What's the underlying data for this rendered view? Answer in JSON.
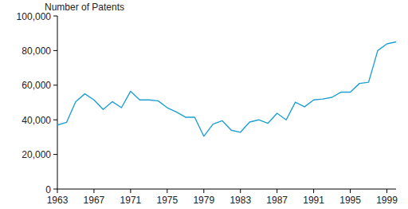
{
  "chart_data": {
    "type": "line",
    "y_label": "Number of Patents",
    "x": [
      1963,
      1964,
      1965,
      1966,
      1967,
      1968,
      1969,
      1970,
      1971,
      1972,
      1973,
      1974,
      1975,
      1976,
      1977,
      1978,
      1979,
      1980,
      1981,
      1982,
      1983,
      1984,
      1985,
      1986,
      1987,
      1988,
      1989,
      1990,
      1991,
      1992,
      1993,
      1994,
      1995,
      1996,
      1997,
      1998,
      1999,
      2000
    ],
    "series": [
      {
        "name": "Number of Patents",
        "color": "#1f9fd4",
        "values": [
          37000,
          38500,
          50500,
          55000,
          51500,
          46000,
          50500,
          47000,
          56500,
          51500,
          51500,
          51000,
          47000,
          44500,
          41500,
          41500,
          30500,
          37500,
          39500,
          34000,
          32800,
          38700,
          40000,
          38000,
          43800,
          40000,
          50200,
          47500,
          51500,
          52000,
          53000,
          56000,
          56000,
          61000,
          61700,
          80000,
          83900,
          85000
        ]
      }
    ],
    "xlim": [
      1963,
      2000
    ],
    "xticks": [
      1963,
      1967,
      1971,
      1975,
      1979,
      1983,
      1987,
      1991,
      1995,
      1999
    ],
    "ylim": [
      0,
      100000
    ],
    "yticks": [
      0,
      {
        "value": 20000,
        "label": "20,000"
      },
      {
        "value": 40000,
        "label": "40,000"
      },
      {
        "value": 60000,
        "label": "60,000"
      },
      {
        "value": 80000,
        "label": "80,000"
      },
      {
        "value": 100000,
        "label": "100,000"
      }
    ],
    "grid": false
  }
}
